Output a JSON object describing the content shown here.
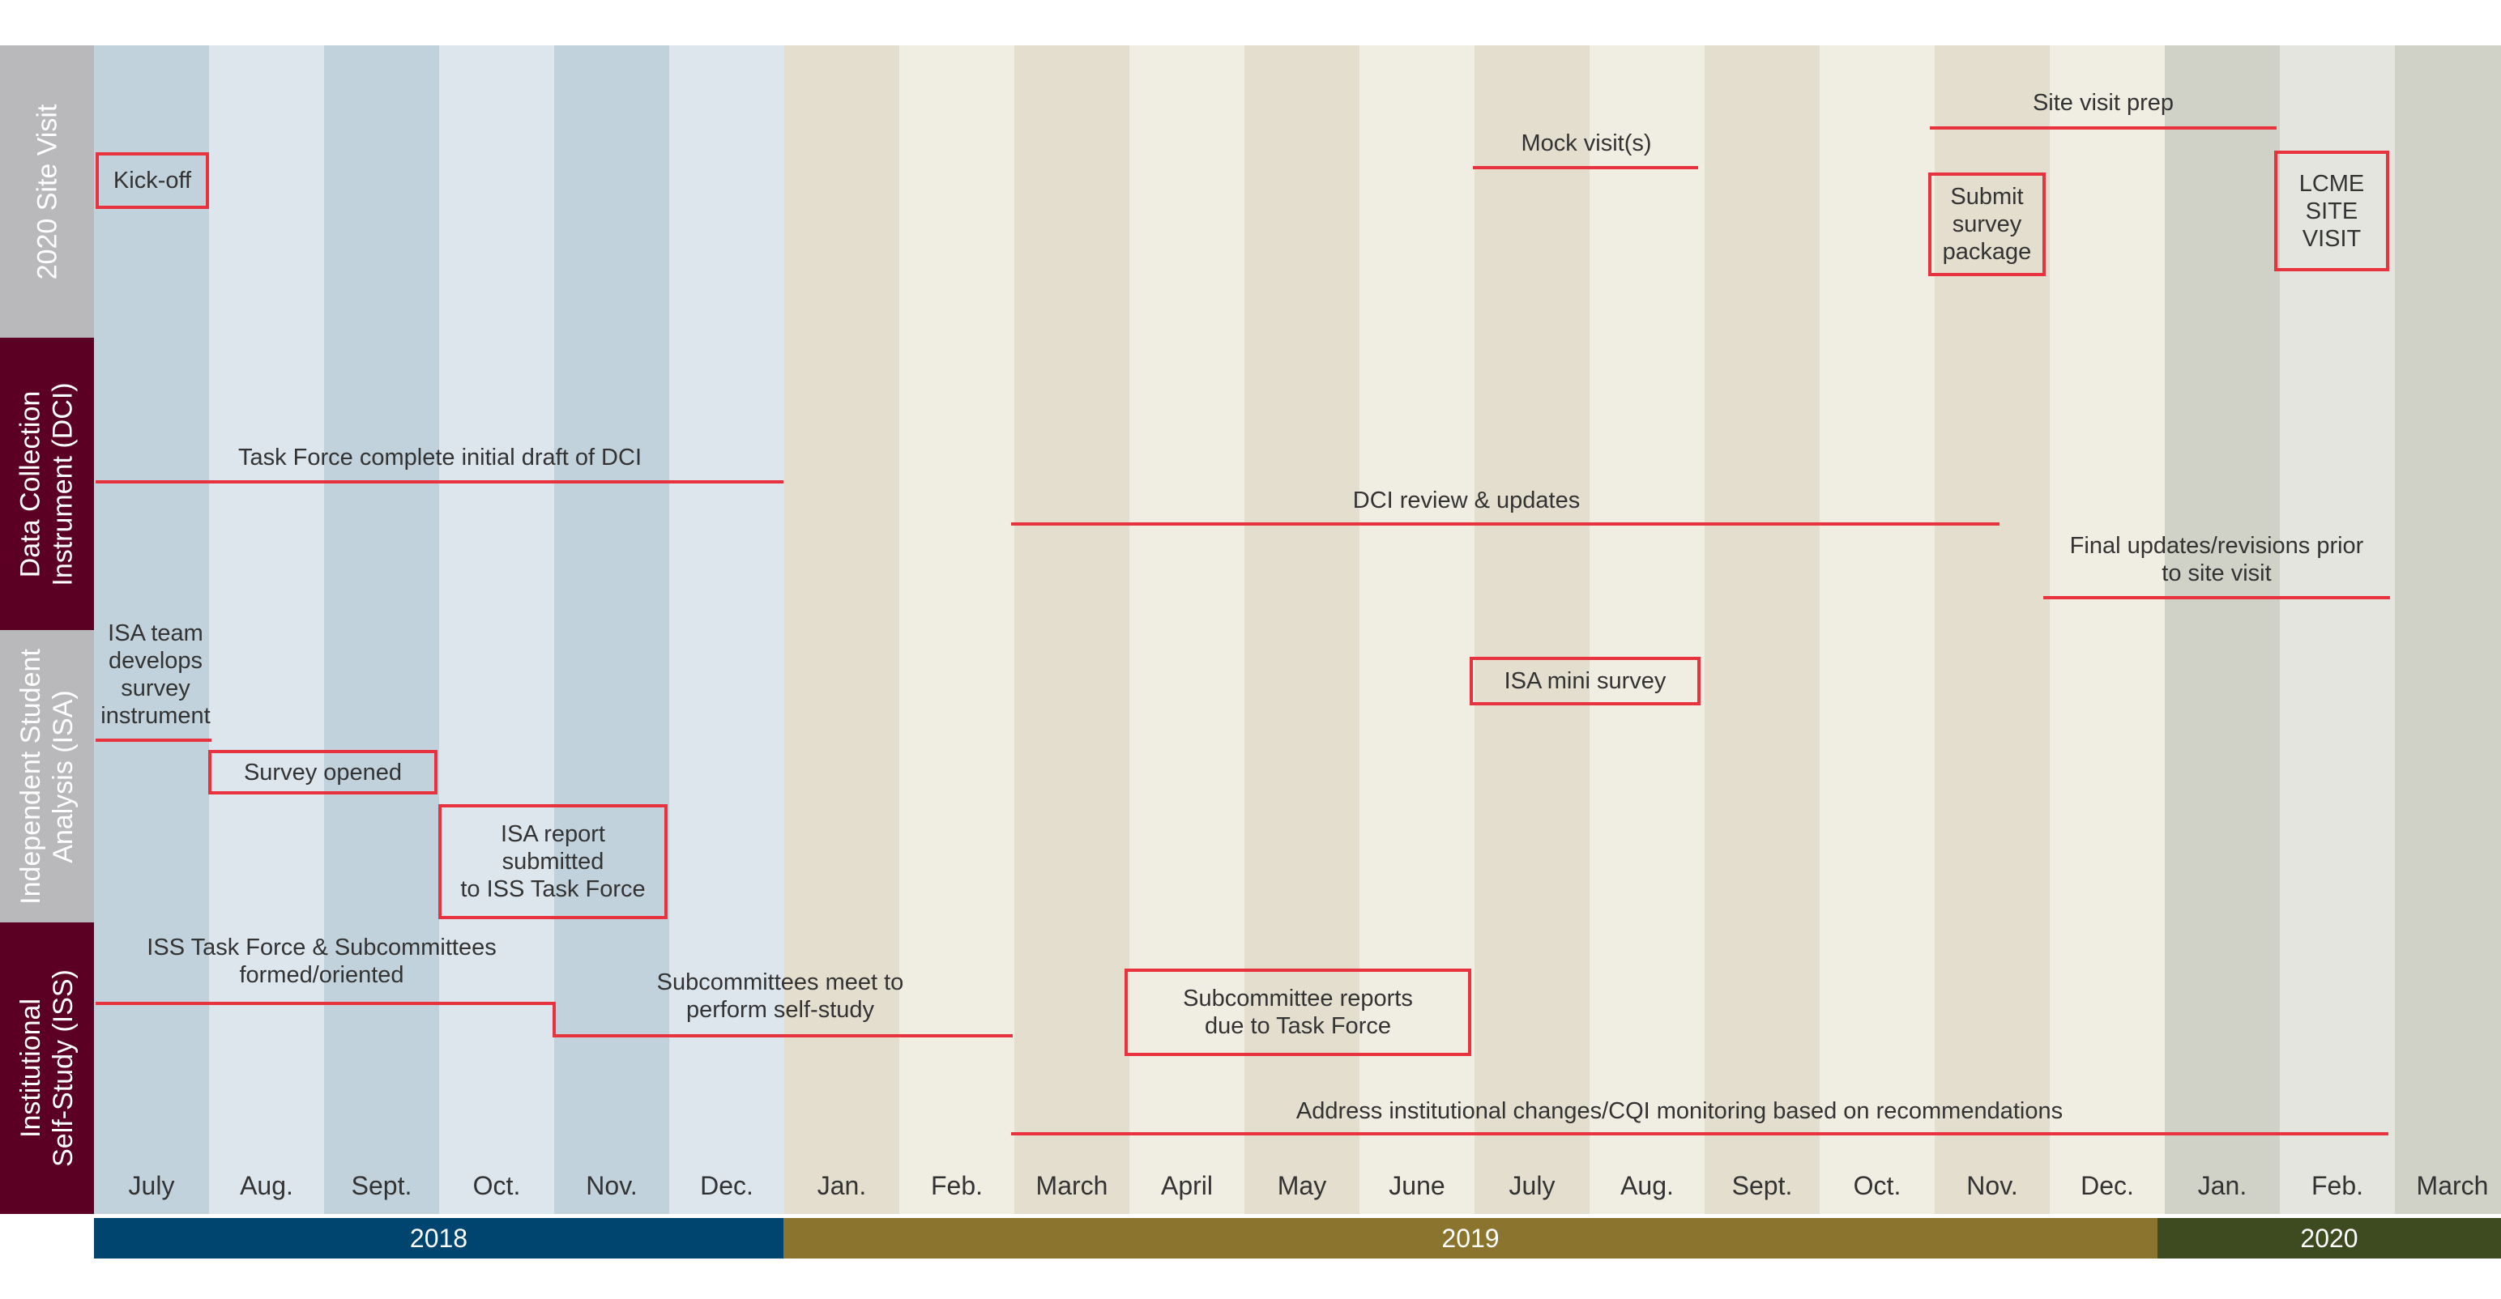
{
  "colors": {
    "accent_red": "#e8333f",
    "year_2018": "#004470",
    "year_2019": "#8b742d",
    "year_2020": "#3e4a20",
    "label_gray": "#b9b9bb",
    "label_maroon": "#5b0023"
  },
  "rows": {
    "site_visit": "2020 Site Visit",
    "dci": "Data Collection\nInstrument (DCI)",
    "isa": "Independent Student\nAnalysis (ISA)",
    "iss": "Institutional\nSelf-Study (ISS)"
  },
  "months": [
    "July",
    "Aug.",
    "Sept.",
    "Oct.",
    "Nov.",
    "Dec.",
    "Jan.",
    "Feb.",
    "March",
    "April",
    "May",
    "June",
    "July",
    "Aug.",
    "Sept.",
    "Oct.",
    "Nov.",
    "Dec.",
    "Jan.",
    "Feb.",
    "March"
  ],
  "years": [
    "2018",
    "2019",
    "2020"
  ],
  "events": {
    "kickoff": "Kick-off",
    "mock_visits": "Mock visit(s)",
    "site_visit_prep": "Site visit prep",
    "submit_survey": "Submit\nsurvey\npackage",
    "lcme": "LCME\nSITE\nVISIT",
    "dci_draft": "Task Force complete initial draft of DCI",
    "dci_review": "DCI review & updates",
    "dci_final": "Final updates/revisions prior\nto site visit",
    "isa_team": "ISA team\ndevelops\nsurvey\ninstrument",
    "isa_survey_opened": "Survey opened",
    "isa_report": "ISA report\nsubmitted\nto ISS Task Force",
    "isa_mini": "ISA mini survey",
    "iss_formed": "ISS Task Force & Subcommittees\nformed/oriented",
    "iss_meet": "Subcommittees meet to\nperform self-study",
    "iss_reports": "Subcommittee reports\ndue to Task Force",
    "iss_address": "Address institutional changes/CQI monitoring based on recommendations"
  }
}
